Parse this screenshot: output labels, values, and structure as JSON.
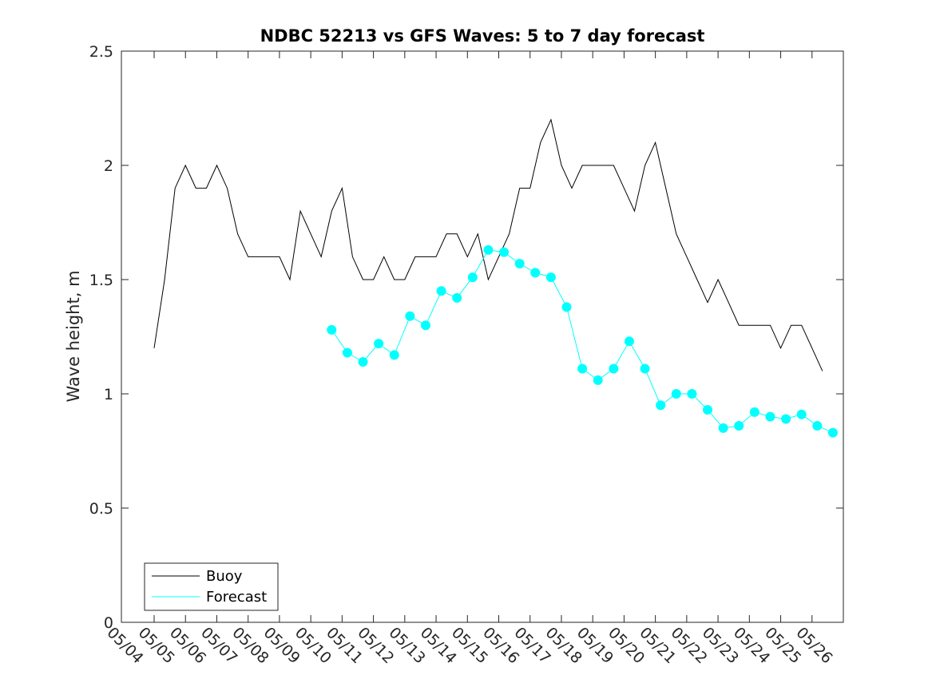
{
  "chart_data": {
    "type": "line",
    "title": "NDBC 52213 vs GFS Waves: 5 to 7 day forecast",
    "xlabel": "",
    "ylabel": "Wave height, m",
    "ylim": [
      0,
      2.5
    ],
    "yticks": [
      "0",
      "0.5",
      "1",
      "1.5",
      "2",
      "2.5"
    ],
    "xlim": [
      "05/04",
      "05/26"
    ],
    "xticks": [
      "05/04",
      "05/05",
      "05/06",
      "05/07",
      "05/08",
      "05/09",
      "05/10",
      "05/11",
      "05/12",
      "05/13",
      "05/14",
      "05/15",
      "05/16",
      "05/17",
      "05/18",
      "05/19",
      "05/20",
      "05/21",
      "05/22",
      "05/23",
      "05/24",
      "05/25",
      "05/26"
    ],
    "grid": false,
    "legend_position": "bottom-left",
    "legend": [
      "Buoy",
      "Forecast"
    ],
    "colors": {
      "buoy": "#000000",
      "forecast": "#00FFFF",
      "marker": "#00FFFF",
      "axis": "#262626"
    },
    "series": [
      {
        "name": "Buoy",
        "x": [
          "2014-05-04 00:00",
          "2014-05-04 08:00",
          "2014-05-04 16:00",
          "2014-05-05 00:00",
          "2014-05-05 08:00",
          "2014-05-05 16:00",
          "2014-05-06 00:00",
          "2014-05-06 08:00",
          "2014-05-06 16:00",
          "2014-05-07 00:00",
          "2014-05-07 08:00",
          "2014-05-07 16:00",
          "2014-05-08 00:00",
          "2014-05-08 08:00",
          "2014-05-08 16:00",
          "2014-05-09 00:00",
          "2014-05-09 08:00",
          "2014-05-09 16:00",
          "2014-05-10 00:00",
          "2014-05-10 08:00",
          "2014-05-10 16:00",
          "2014-05-11 00:00",
          "2014-05-11 08:00",
          "2014-05-11 16:00",
          "2014-05-12 00:00",
          "2014-05-12 08:00",
          "2014-05-12 16:00",
          "2014-05-13 00:00",
          "2014-05-13 08:00",
          "2014-05-13 16:00",
          "2014-05-14 00:00",
          "2014-05-14 08:00",
          "2014-05-14 16:00",
          "2014-05-15 00:00",
          "2014-05-15 08:00",
          "2014-05-15 16:00",
          "2014-05-16 00:00",
          "2014-05-16 08:00",
          "2014-05-16 16:00",
          "2014-05-17 00:00",
          "2014-05-17 08:00",
          "2014-05-17 16:00",
          "2014-05-18 00:00",
          "2014-05-18 08:00",
          "2014-05-18 16:00",
          "2014-05-19 00:00",
          "2014-05-19 08:00",
          "2014-05-19 16:00",
          "2014-05-20 00:00",
          "2014-05-20 08:00",
          "2014-05-20 16:00",
          "2014-05-21 00:00",
          "2014-05-21 08:00",
          "2014-05-21 16:00",
          "2014-05-22 00:00",
          "2014-05-22 08:00",
          "2014-05-22 16:00",
          "2014-05-23 00:00",
          "2014-05-23 08:00",
          "2014-05-23 16:00",
          "2014-05-24 00:00",
          "2014-05-24 08:00",
          "2014-05-24 16:00",
          "2014-05-25 00:00",
          "2014-05-25 08:00"
        ],
        "y": [
          1.2,
          1.5,
          1.9,
          2.0,
          1.9,
          1.9,
          2.0,
          1.9,
          1.7,
          1.6,
          1.6,
          1.6,
          1.6,
          1.5,
          1.8,
          1.7,
          1.6,
          1.8,
          1.9,
          1.6,
          1.5,
          1.5,
          1.6,
          1.5,
          1.5,
          1.6,
          1.6,
          1.6,
          1.7,
          1.7,
          1.6,
          1.7,
          1.5,
          1.6,
          1.7,
          1.9,
          1.9,
          2.1,
          2.2,
          2.0,
          1.9,
          2.0,
          2.0,
          2.0,
          2.0,
          1.9,
          1.8,
          2.0,
          2.1,
          1.9,
          1.7,
          1.6,
          1.5,
          1.4,
          1.5,
          1.4,
          1.3,
          1.3,
          1.3,
          1.3,
          1.2,
          1.3,
          1.3,
          1.2,
          1.1
        ]
      },
      {
        "name": "Forecast",
        "x": [
          "2014-05-09 16:00",
          "2014-05-10 04:00",
          "2014-05-10 16:00",
          "2014-05-11 04:00",
          "2014-05-11 16:00",
          "2014-05-12 04:00",
          "2014-05-12 16:00",
          "2014-05-13 04:00",
          "2014-05-13 16:00",
          "2014-05-14 04:00",
          "2014-05-14 16:00",
          "2014-05-15 04:00",
          "2014-05-15 16:00",
          "2014-05-16 04:00",
          "2014-05-16 16:00",
          "2014-05-17 04:00",
          "2014-05-17 16:00",
          "2014-05-18 04:00",
          "2014-05-18 16:00",
          "2014-05-19 04:00",
          "2014-05-19 16:00",
          "2014-05-20 04:00",
          "2014-05-20 16:00",
          "2014-05-21 04:00",
          "2014-05-21 16:00",
          "2014-05-22 04:00",
          "2014-05-22 16:00",
          "2014-05-23 04:00",
          "2014-05-23 16:00",
          "2014-05-24 04:00",
          "2014-05-24 16:00",
          "2014-05-25 04:00",
          "2014-05-25 16:00"
        ],
        "y": [
          1.28,
          1.18,
          1.14,
          1.22,
          1.17,
          1.34,
          1.3,
          1.45,
          1.42,
          1.51,
          1.63,
          1.62,
          1.57,
          1.53,
          1.51,
          1.38,
          1.11,
          1.06,
          1.11,
          1.23,
          1.11,
          0.95,
          1.0,
          1.0,
          0.93,
          0.85,
          0.86,
          0.92,
          0.9,
          0.89,
          0.91,
          0.86,
          0.83
        ]
      }
    ]
  }
}
